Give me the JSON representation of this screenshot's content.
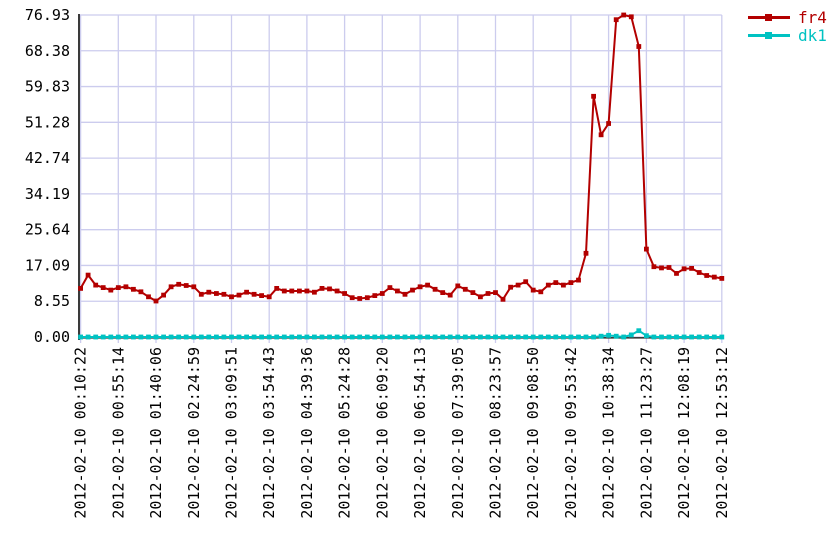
{
  "chart_data": {
    "type": "line",
    "title": "",
    "xlabel": "",
    "ylabel": "",
    "ylim": [
      0,
      76.93
    ],
    "grid": true,
    "grid_color": "#ccccee",
    "axis_color": "#3a3a3a",
    "legend_position": "top-right",
    "points_per_tick": 5,
    "y_tick_labels": [
      "0.00",
      "8.55",
      "17.09",
      "25.64",
      "34.19",
      "42.74",
      "51.28",
      "59.83",
      "68.38",
      "76.93"
    ],
    "x_tick_labels": [
      "2012-02-10 00:10:22",
      "2012-02-10 00:55:14",
      "2012-02-10 01:40:06",
      "2012-02-10 02:24:59",
      "2012-02-10 03:09:51",
      "2012-02-10 03:54:43",
      "2012-02-10 04:39:36",
      "2012-02-10 05:24:28",
      "2012-02-10 06:09:20",
      "2012-02-10 06:54:13",
      "2012-02-10 07:39:05",
      "2012-02-10 08:23:57",
      "2012-02-10 09:08:50",
      "2012-02-10 09:53:42",
      "2012-02-10 10:38:34",
      "2012-02-10 11:23:27",
      "2012-02-10 12:08:19",
      "2012-02-10 12:53:12"
    ],
    "series": [
      {
        "name": "fr4",
        "color": "#b30000",
        "values": [
          11.6,
          14.8,
          12.4,
          11.8,
          11.2,
          11.8,
          12.0,
          11.4,
          10.8,
          9.6,
          8.6,
          10.0,
          12.0,
          12.6,
          12.3,
          12.0,
          10.2,
          10.7,
          10.4,
          10.2,
          9.6,
          10.0,
          10.7,
          10.2,
          9.9,
          9.6,
          11.6,
          11.0,
          11.0,
          11.0,
          11.0,
          10.7,
          11.6,
          11.5,
          11.0,
          10.4,
          9.4,
          9.2,
          9.4,
          9.9,
          10.4,
          11.8,
          11.0,
          10.2,
          11.2,
          12.0,
          12.4,
          11.4,
          10.6,
          10.0,
          12.2,
          11.4,
          10.6,
          9.6,
          10.4,
          10.6,
          9.0,
          11.9,
          12.4,
          13.2,
          11.2,
          10.8,
          12.4,
          13.0,
          12.4,
          13.0,
          13.6,
          20.0,
          57.5,
          48.3,
          51.0,
          75.8,
          76.93,
          76.5,
          69.4,
          21.0,
          16.8,
          16.5,
          16.6,
          15.2,
          16.3,
          16.4,
          15.4,
          14.7,
          14.3,
          14.0
        ]
      },
      {
        "name": "dk1",
        "color": "#00c2c2",
        "values": [
          0,
          0,
          0,
          0,
          0,
          0,
          0,
          0,
          0,
          0,
          0,
          0,
          0,
          0,
          0,
          0,
          0,
          0,
          0,
          0,
          0,
          0,
          0,
          0,
          0,
          0,
          0,
          0,
          0,
          0,
          0,
          0,
          0,
          0,
          0,
          0,
          0,
          0,
          0,
          0,
          0,
          0,
          0,
          0,
          0,
          0,
          0,
          0,
          0,
          0,
          0,
          0,
          0,
          0,
          0,
          0,
          0,
          0,
          0,
          0,
          0,
          0,
          0,
          0,
          0,
          0,
          0,
          0,
          0,
          0.2,
          0.4,
          0.2,
          0,
          0.5,
          1.5,
          0.3,
          0,
          0,
          0,
          0,
          0,
          0,
          0,
          0,
          0,
          0
        ]
      }
    ]
  }
}
